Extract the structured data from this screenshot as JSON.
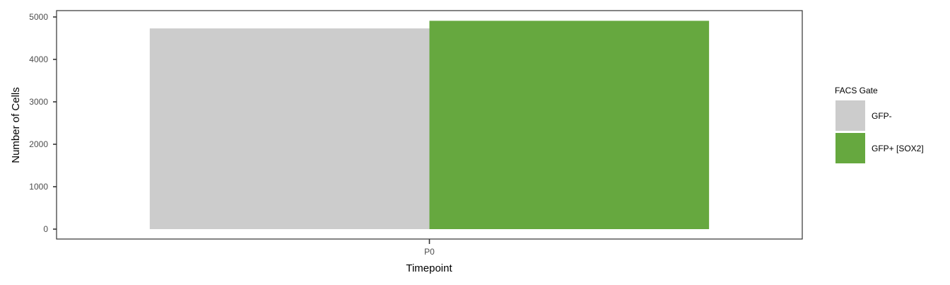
{
  "chart_data": {
    "type": "bar",
    "categories": [
      "P0"
    ],
    "series": [
      {
        "name": "GFP-",
        "values": [
          4730
        ],
        "color": "#cccccc"
      },
      {
        "name": "GFP+ [SOX2]",
        "values": [
          4910
        ],
        "color": "#66a83f"
      }
    ],
    "xlabel": "Timepoint",
    "ylabel": "Number of Cells",
    "ylim": [
      0,
      5000
    ],
    "yticks": [
      0,
      1000,
      2000,
      3000,
      4000,
      5000
    ],
    "legend_title": "FACS Gate",
    "legend_position": "right",
    "grid": false,
    "bar_layout": "dodge"
  }
}
